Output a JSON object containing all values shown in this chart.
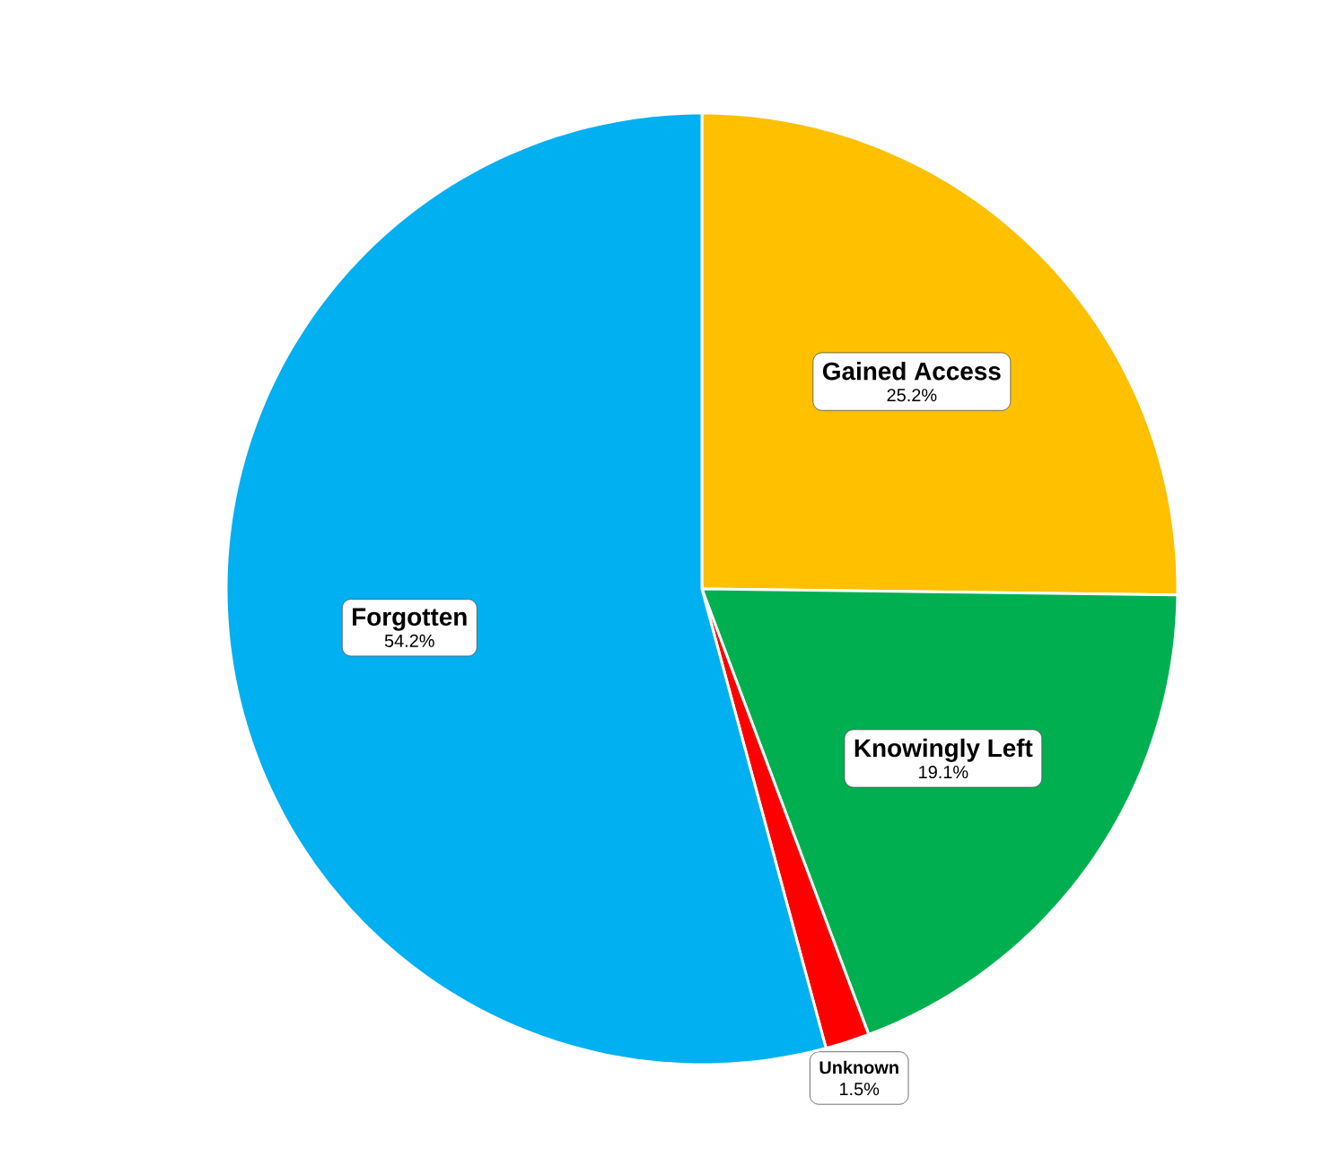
{
  "chart_data": {
    "type": "pie",
    "categories": [
      "Gained Access",
      "Knowingly Left",
      "Unknown",
      "Forgotten"
    ],
    "values": [
      25.2,
      19.1,
      1.5,
      54.2
    ],
    "value_labels": [
      "25.2%",
      "19.1%",
      "1.5%",
      "54.2%"
    ],
    "colors": [
      "#ffc000",
      "#00b050",
      "#ff0000",
      "#00b0f0"
    ]
  }
}
